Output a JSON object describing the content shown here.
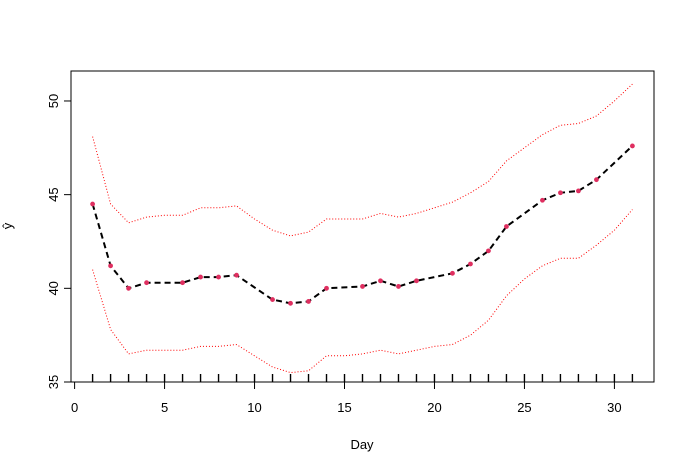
{
  "chart_data": {
    "type": "line",
    "xlabel": "Day",
    "ylabel": "ŷ",
    "xlim": [
      -0.2,
      32.2
    ],
    "ylim": [
      35,
      51.6
    ],
    "x_ticks": [
      0,
      5,
      10,
      15,
      20,
      25,
      30
    ],
    "y_ticks": [
      35,
      40,
      45,
      50
    ],
    "grid": false,
    "rug_x": [
      1,
      2,
      3,
      4,
      5,
      6,
      7,
      8,
      9,
      10,
      11,
      12,
      13,
      14,
      15,
      16,
      17,
      18,
      19,
      20,
      21,
      22,
      23,
      24,
      25,
      26,
      27,
      28,
      29,
      30,
      31
    ],
    "colors": {
      "fit": "#000000",
      "band": "#ff0000",
      "points": "#df2f60"
    },
    "series": [
      {
        "role": "fit",
        "style": "dashed",
        "x": [
          1,
          2,
          3,
          4,
          6,
          7,
          8,
          9,
          11,
          12,
          13,
          14,
          16,
          17,
          18,
          19,
          21,
          22,
          23,
          24,
          26,
          27,
          28,
          29,
          31
        ],
        "y": [
          44.5,
          41.2,
          40.0,
          40.3,
          40.3,
          40.6,
          40.6,
          40.7,
          39.4,
          39.2,
          39.3,
          40.0,
          40.1,
          40.4,
          40.1,
          40.4,
          40.8,
          41.3,
          42.0,
          43.3,
          44.7,
          45.1,
          45.2,
          45.8,
          47.6
        ]
      },
      {
        "role": "upper-band",
        "style": "dotted",
        "x": [
          1,
          2,
          3,
          4,
          5,
          6,
          7,
          8,
          9,
          10,
          11,
          12,
          13,
          14,
          15,
          16,
          17,
          18,
          19,
          20,
          21,
          22,
          23,
          24,
          25,
          26,
          27,
          28,
          29,
          30,
          31
        ],
        "y": [
          48.1,
          44.5,
          43.5,
          43.8,
          43.9,
          43.9,
          44.3,
          44.3,
          44.4,
          43.7,
          43.1,
          42.8,
          43.0,
          43.7,
          43.7,
          43.7,
          44.0,
          43.8,
          44.0,
          44.3,
          44.6,
          45.1,
          45.7,
          46.8,
          47.5,
          48.2,
          48.7,
          48.8,
          49.2,
          50.0,
          50.9
        ]
      },
      {
        "role": "lower-band",
        "style": "dotted",
        "x": [
          1,
          2,
          3,
          4,
          5,
          6,
          7,
          8,
          9,
          10,
          11,
          12,
          13,
          14,
          15,
          16,
          17,
          18,
          19,
          20,
          21,
          22,
          23,
          24,
          25,
          26,
          27,
          28,
          29,
          30,
          31
        ],
        "y": [
          41.0,
          37.8,
          36.5,
          36.7,
          36.7,
          36.7,
          36.9,
          36.9,
          37.0,
          36.4,
          35.8,
          35.5,
          35.6,
          36.4,
          36.4,
          36.5,
          36.7,
          36.5,
          36.7,
          36.9,
          37.0,
          37.5,
          38.3,
          39.6,
          40.5,
          41.2,
          41.6,
          41.6,
          42.3,
          43.1,
          44.2
        ]
      },
      {
        "role": "points",
        "style": "points",
        "x": [
          1,
          2,
          3,
          4,
          6,
          7,
          8,
          9,
          11,
          12,
          13,
          14,
          16,
          17,
          18,
          19,
          21,
          22,
          23,
          24,
          26,
          27,
          28,
          29,
          31
        ],
        "y": [
          44.5,
          41.2,
          40.0,
          40.3,
          40.3,
          40.6,
          40.6,
          40.7,
          39.4,
          39.2,
          39.3,
          40.0,
          40.1,
          40.4,
          40.1,
          40.4,
          40.8,
          41.3,
          42.0,
          43.3,
          44.7,
          45.1,
          45.2,
          45.8,
          47.6
        ]
      }
    ]
  }
}
